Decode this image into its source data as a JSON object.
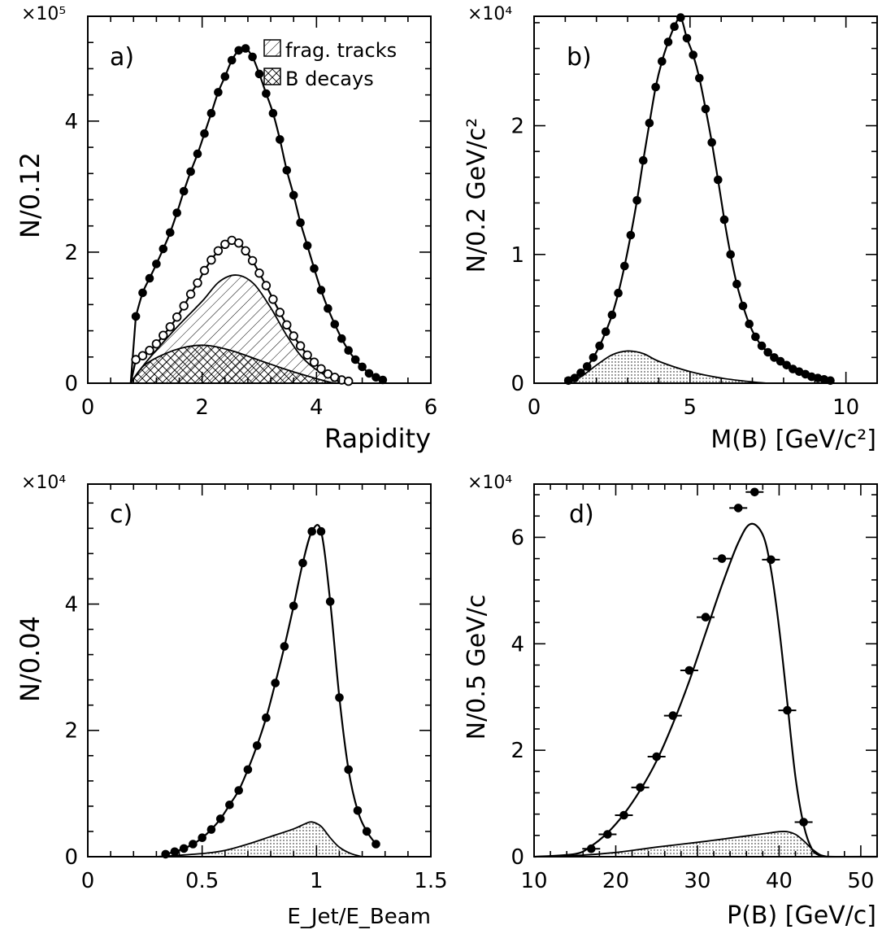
{
  "chart_data": [
    {
      "type": "scatter",
      "panel_label": "a)",
      "xlabel": "Rapidity",
      "ylabel": "N/0.12",
      "exponent": "×10⁵",
      "xlim": [
        0,
        6
      ],
      "ylim": [
        0,
        5.6
      ],
      "x_ticks": [
        "0",
        "2",
        "4",
        "6"
      ],
      "y_ticks": [
        "0",
        "2",
        "4"
      ],
      "legend_position": "top-right",
      "legend": [
        "frag. tracks",
        "B decays"
      ],
      "series": [
        {
          "style": "filled-points-with-curve",
          "x": [
            0.84,
            0.96,
            1.08,
            1.2,
            1.32,
            1.44,
            1.56,
            1.68,
            1.8,
            1.92,
            2.04,
            2.16,
            2.28,
            2.4,
            2.52,
            2.64,
            2.76,
            2.88,
            3.0,
            3.12,
            3.24,
            3.36,
            3.48,
            3.6,
            3.72,
            3.84,
            3.96,
            4.08,
            4.2,
            4.32,
            4.44,
            4.56,
            4.68,
            4.8,
            4.92,
            5.04,
            5.16
          ],
          "y": [
            1.02,
            1.38,
            1.6,
            1.82,
            2.05,
            2.3,
            2.6,
            2.93,
            3.23,
            3.5,
            3.81,
            4.12,
            4.44,
            4.68,
            4.93,
            5.08,
            5.11,
            4.98,
            4.72,
            4.42,
            4.12,
            3.72,
            3.25,
            2.87,
            2.45,
            2.1,
            1.75,
            1.42,
            1.14,
            0.9,
            0.68,
            0.5,
            0.36,
            0.25,
            0.15,
            0.09,
            0.05
          ]
        },
        {
          "style": "open-points-with-curve",
          "x": [
            0.84,
            0.96,
            1.08,
            1.2,
            1.32,
            1.44,
            1.56,
            1.68,
            1.8,
            1.92,
            2.04,
            2.16,
            2.28,
            2.4,
            2.52,
            2.64,
            2.76,
            2.88,
            3.0,
            3.12,
            3.24,
            3.36,
            3.48,
            3.6,
            3.72,
            3.84,
            3.96,
            4.08,
            4.2,
            4.32,
            4.44,
            4.56
          ],
          "y": [
            0.36,
            0.42,
            0.5,
            0.6,
            0.73,
            0.86,
            1.01,
            1.18,
            1.36,
            1.53,
            1.72,
            1.88,
            2.02,
            2.12,
            2.18,
            2.14,
            2.02,
            1.87,
            1.68,
            1.49,
            1.28,
            1.08,
            0.89,
            0.72,
            0.57,
            0.43,
            0.32,
            0.22,
            0.14,
            0.09,
            0.05,
            0.03
          ]
        },
        {
          "style": "hatched-area",
          "x": [
            0.75,
            1.0,
            1.5,
            2.0,
            2.3,
            2.6,
            2.9,
            3.2,
            3.5,
            3.8,
            4.2,
            4.6
          ],
          "y": [
            0,
            0.3,
            0.8,
            1.25,
            1.55,
            1.65,
            1.52,
            1.15,
            0.7,
            0.35,
            0.1,
            0
          ]
        },
        {
          "style": "cross-hatched-area",
          "x": [
            0.75,
            1.0,
            1.5,
            2.0,
            2.5,
            3.0,
            3.5,
            4.0,
            4.3
          ],
          "y": [
            0,
            0.28,
            0.5,
            0.58,
            0.5,
            0.35,
            0.2,
            0.07,
            0
          ]
        }
      ]
    },
    {
      "type": "scatter",
      "panel_label": "b)",
      "xlabel": "M(B) [GeV/c²]",
      "ylabel": "N/0.2 GeV/c²",
      "exponent": "×10⁴",
      "xlim": [
        0,
        11
      ],
      "ylim": [
        0,
        2.85
      ],
      "x_ticks": [
        "0",
        "5",
        "10"
      ],
      "y_ticks": [
        "0",
        "1",
        "2"
      ],
      "series": [
        {
          "style": "filled-points-with-curve",
          "x": [
            1.1,
            1.3,
            1.5,
            1.7,
            1.9,
            2.1,
            2.3,
            2.5,
            2.7,
            2.9,
            3.1,
            3.3,
            3.5,
            3.7,
            3.9,
            4.1,
            4.3,
            4.5,
            4.7,
            4.9,
            5.1,
            5.3,
            5.5,
            5.7,
            5.9,
            6.1,
            6.3,
            6.5,
            6.7,
            6.9,
            7.1,
            7.3,
            7.5,
            7.7,
            7.9,
            8.1,
            8.3,
            8.5,
            8.7,
            8.9,
            9.1,
            9.3,
            9.5
          ],
          "y": [
            0.02,
            0.04,
            0.08,
            0.13,
            0.2,
            0.29,
            0.4,
            0.53,
            0.7,
            0.91,
            1.15,
            1.42,
            1.73,
            2.02,
            2.3,
            2.5,
            2.65,
            2.77,
            2.84,
            2.68,
            2.55,
            2.37,
            2.13,
            1.87,
            1.58,
            1.27,
            1.0,
            0.77,
            0.6,
            0.46,
            0.36,
            0.29,
            0.24,
            0.2,
            0.17,
            0.14,
            0.11,
            0.09,
            0.07,
            0.05,
            0.04,
            0.03,
            0.02
          ]
        },
        {
          "style": "dotted-area",
          "x": [
            1.0,
            1.5,
            2.0,
            2.5,
            3.0,
            3.5,
            4.0,
            5.0,
            6.0,
            7.0,
            7.5
          ],
          "y": [
            0,
            0.05,
            0.14,
            0.22,
            0.25,
            0.23,
            0.17,
            0.09,
            0.04,
            0.01,
            0
          ]
        }
      ]
    },
    {
      "type": "scatter",
      "panel_label": "c)",
      "xlabel": "E_Jet/E_Beam",
      "ylabel": "N/0.04",
      "exponent": "×10⁴",
      "xlim": [
        0,
        1.5
      ],
      "ylim": [
        0,
        5.9
      ],
      "x_ticks": [
        "0",
        "0.5",
        "1",
        "1.5"
      ],
      "y_ticks": [
        "0",
        "2",
        "4"
      ],
      "series": [
        {
          "style": "filled-points-with-curve",
          "x": [
            0.34,
            0.38,
            0.42,
            0.46,
            0.5,
            0.54,
            0.58,
            0.62,
            0.66,
            0.7,
            0.74,
            0.78,
            0.82,
            0.86,
            0.9,
            0.94,
            0.98,
            1.02,
            1.06,
            1.1,
            1.14,
            1.18,
            1.22,
            1.26
          ],
          "y": [
            0.04,
            0.08,
            0.13,
            0.2,
            0.3,
            0.43,
            0.6,
            0.82,
            1.05,
            1.38,
            1.76,
            2.2,
            2.75,
            3.33,
            3.97,
            4.65,
            5.15,
            5.15,
            4.04,
            2.52,
            1.38,
            0.73,
            0.4,
            0.2
          ]
        },
        {
          "style": "dotted-area",
          "x": [
            0.3,
            0.5,
            0.6,
            0.7,
            0.8,
            0.9,
            0.95,
            0.98,
            1.02,
            1.06,
            1.1,
            1.15,
            1.2
          ],
          "y": [
            0,
            0.05,
            0.1,
            0.2,
            0.32,
            0.44,
            0.52,
            0.55,
            0.48,
            0.3,
            0.15,
            0.05,
            0
          ]
        }
      ]
    },
    {
      "type": "scatter",
      "panel_label": "d)",
      "xlabel": "P(B) [GeV/c]",
      "ylabel": "N/0.5 GeV/c",
      "exponent": "×10⁴",
      "xlim": [
        10,
        52
      ],
      "ylim": [
        0,
        7.0
      ],
      "x_ticks": [
        "10",
        "20",
        "30",
        "40",
        "50"
      ],
      "y_ticks": [
        "0",
        "2",
        "4",
        "6"
      ],
      "series": [
        {
          "style": "filled-points-with-xerrors",
          "x": [
            17,
            19,
            21,
            23,
            25,
            27,
            29,
            31,
            33,
            35,
            37,
            39,
            41,
            43
          ],
          "y": [
            0.15,
            0.42,
            0.78,
            1.3,
            1.88,
            2.65,
            3.5,
            4.5,
            5.6,
            6.55,
            6.85,
            5.58,
            2.75,
            0.65
          ]
        },
        {
          "style": "curve",
          "x": [
            10,
            15,
            17,
            19,
            21,
            23,
            25,
            27,
            29,
            31,
            33,
            35,
            36.5,
            38,
            39,
            40,
            41,
            42,
            43,
            44,
            45,
            46,
            52
          ],
          "y": [
            0,
            0.05,
            0.2,
            0.45,
            0.8,
            1.25,
            1.8,
            2.5,
            3.3,
            4.2,
            5.1,
            5.9,
            6.25,
            6.05,
            5.4,
            4.3,
            2.9,
            1.5,
            0.6,
            0.15,
            0.02,
            0,
            0
          ]
        },
        {
          "style": "dotted-area",
          "x": [
            10,
            15,
            20,
            25,
            30,
            35,
            38,
            40,
            41,
            42,
            43,
            44,
            45,
            46
          ],
          "y": [
            0,
            0.02,
            0.08,
            0.18,
            0.27,
            0.37,
            0.43,
            0.47,
            0.47,
            0.42,
            0.3,
            0.15,
            0.04,
            0
          ]
        }
      ]
    }
  ]
}
